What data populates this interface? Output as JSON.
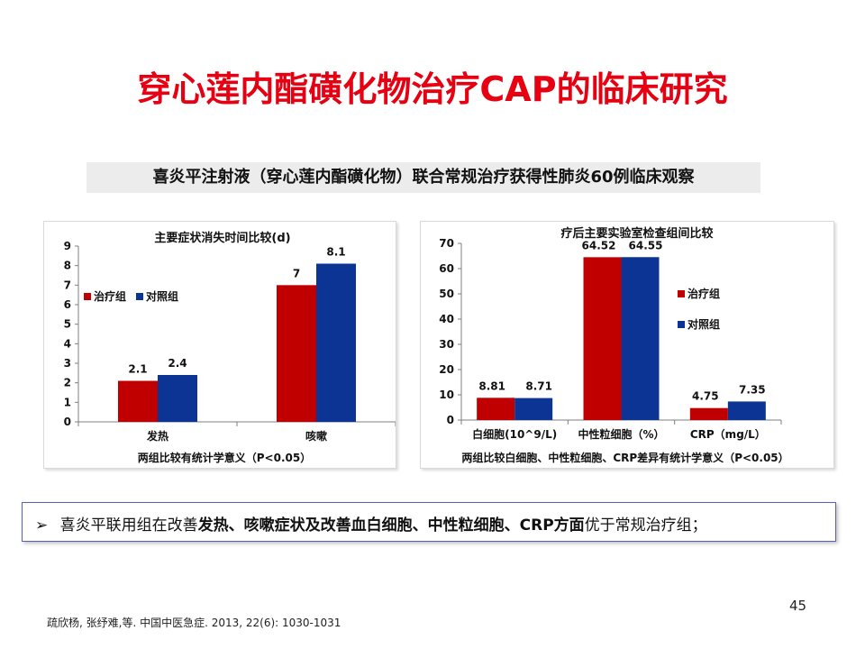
{
  "slide": {
    "title": "穿心莲内酯磺化物治疗CAP的临床研究",
    "subtitle": "喜炎平注射液（穿心莲内酯磺化物）联合常规治疗获得性肺炎60例临床观察",
    "conclusion_prefix": "喜炎平联用组在改善",
    "conclusion_bold": "发热、咳嗽症状及改善血白细胞、中性粒细胞、CRP方面",
    "conclusion_suffix": "优于常规治疗组；",
    "bullet": "➢",
    "page_number": "45",
    "citation": "疏欣杨, 张纾难,等. 中国中医急症. 2013, 22(6): 1030-1031"
  },
  "colors": {
    "title": "#e60012",
    "treatment": "#c00000",
    "control": "#0b3494"
  },
  "chart_data": [
    {
      "type": "bar",
      "title": "主要症状消失时间比较(d)",
      "categories": [
        "发热",
        "咳嗽"
      ],
      "series": [
        {
          "name": "治疗组",
          "values": [
            2.1,
            7
          ]
        },
        {
          "name": "对照组",
          "values": [
            2.4,
            8.1
          ]
        }
      ],
      "data_labels": [
        [
          "2.1",
          "7"
        ],
        [
          "2.4",
          "8.1"
        ]
      ],
      "ylim": [
        0,
        9
      ],
      "yticks": [
        "0",
        "1",
        "2",
        "3",
        "4",
        "5",
        "6",
        "7",
        "8",
        "9"
      ],
      "xlabel": "两组比较有统计学意义（P<0.05）",
      "legend": "center",
      "grid": false
    },
    {
      "type": "bar",
      "title": "疗后主要实验室检查组间比较",
      "categories": [
        "白细胞(10^9/L)",
        "中性粒细胞（%）",
        "CRP（mg/L）"
      ],
      "series": [
        {
          "name": "治疗组",
          "values": [
            8.81,
            64.52,
            4.75
          ]
        },
        {
          "name": "对照组",
          "values": [
            8.71,
            64.55,
            7.35
          ]
        }
      ],
      "data_labels": [
        [
          "8.81",
          "64.52",
          "4.75"
        ],
        [
          "8.71",
          "64.55",
          "7.35"
        ]
      ],
      "ylim": [
        0,
        70
      ],
      "yticks": [
        "0",
        "10",
        "20",
        "30",
        "40",
        "50",
        "60",
        "70"
      ],
      "xlabel": "两组比较白细胞、中性粒细胞、CRP差异有统计学意义（P<0.05）",
      "legend": "right",
      "grid": false
    }
  ]
}
